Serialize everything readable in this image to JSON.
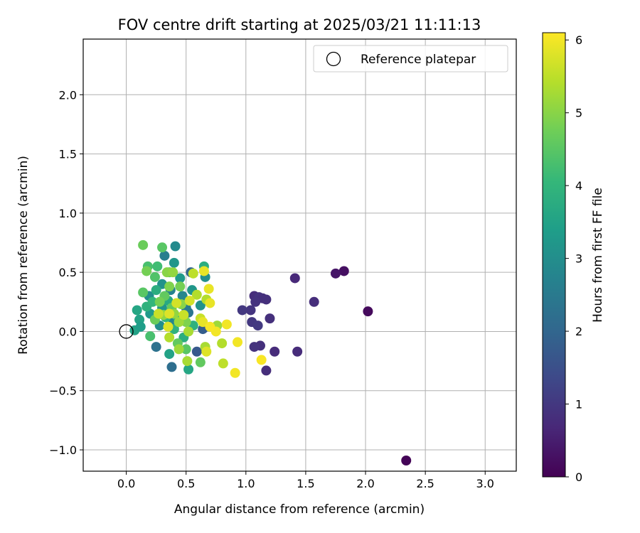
{
  "chart_data": {
    "type": "scatter",
    "title": "FOV centre drift starting at 2025/03/21 11:11:13",
    "xlabel": "Angular distance from reference (arcmin)",
    "ylabel": "Rotation from reference (arcmin)",
    "xlim": [
      -0.36,
      3.26
    ],
    "ylim": [
      -1.18,
      2.47
    ],
    "xticks": [
      "0.0",
      "0.5",
      "1.0",
      "1.5",
      "2.0",
      "2.5",
      "3.0"
    ],
    "yticks": [
      "−1.0",
      "−0.5",
      "0.0",
      "0.5",
      "1.0",
      "1.5",
      "2.0"
    ],
    "grid": true,
    "legend": {
      "position": "top-right",
      "entry": "Reference platepar"
    },
    "reference_point": {
      "x": 0.0,
      "y": 0.0
    },
    "colorbar": {
      "label": "Hours from first FF file",
      "colormap": "viridis",
      "range": [
        0,
        6.1
      ],
      "ticks": [
        "0",
        "1",
        "2",
        "3",
        "4",
        "5",
        "6"
      ]
    },
    "colormap_stops": [
      "#440154",
      "#482878",
      "#3e4989",
      "#31688e",
      "#26828e",
      "#1f9e89",
      "#35b779",
      "#6ece58",
      "#b5de2b",
      "#fde725"
    ],
    "points": [
      {
        "x": 2.34,
        "y": -1.09,
        "h": 0.05
      },
      {
        "x": 2.02,
        "y": 0.17,
        "h": 0.15
      },
      {
        "x": 1.82,
        "y": 0.51,
        "h": 0.25
      },
      {
        "x": 1.75,
        "y": 0.49,
        "h": 0.35
      },
      {
        "x": 1.41,
        "y": 0.45,
        "h": 0.7
      },
      {
        "x": 1.57,
        "y": 0.25,
        "h": 0.8
      },
      {
        "x": 1.43,
        "y": -0.17,
        "h": 0.75
      },
      {
        "x": 1.24,
        "y": -0.17,
        "h": 0.75
      },
      {
        "x": 1.17,
        "y": -0.33,
        "h": 0.8
      },
      {
        "x": 1.2,
        "y": 0.11,
        "h": 0.85
      },
      {
        "x": 1.12,
        "y": -0.12,
        "h": 0.85
      },
      {
        "x": 1.07,
        "y": -0.13,
        "h": 0.9
      },
      {
        "x": 1.07,
        "y": 0.3,
        "h": 0.8
      },
      {
        "x": 1.11,
        "y": 0.29,
        "h": 0.9
      },
      {
        "x": 1.14,
        "y": 0.28,
        "h": 0.85
      },
      {
        "x": 1.17,
        "y": 0.27,
        "h": 0.85
      },
      {
        "x": 1.08,
        "y": 0.25,
        "h": 0.9
      },
      {
        "x": 1.04,
        "y": 0.18,
        "h": 0.95
      },
      {
        "x": 0.97,
        "y": 0.18,
        "h": 1.0
      },
      {
        "x": 1.05,
        "y": 0.08,
        "h": 1.0
      },
      {
        "x": 1.1,
        "y": 0.05,
        "h": 1.05
      },
      {
        "x": 0.59,
        "y": -0.17,
        "h": 1.7
      },
      {
        "x": 0.64,
        "y": 0.02,
        "h": 1.8
      },
      {
        "x": 0.54,
        "y": 0.5,
        "h": 2.0
      },
      {
        "x": 0.38,
        "y": -0.3,
        "h": 2.2
      },
      {
        "x": 0.25,
        "y": -0.13,
        "h": 2.3
      },
      {
        "x": 0.52,
        "y": 0.16,
        "h": 2.4
      },
      {
        "x": 0.32,
        "y": 0.64,
        "h": 2.6
      },
      {
        "x": 0.41,
        "y": 0.72,
        "h": 2.9
      },
      {
        "x": 0.66,
        "y": 0.46,
        "h": 3.0
      },
      {
        "x": 0.47,
        "y": 0.3,
        "h": 2.8
      },
      {
        "x": 0.37,
        "y": 0.35,
        "h": 2.7
      },
      {
        "x": 0.5,
        "y": 0.2,
        "h": 2.5
      },
      {
        "x": 0.39,
        "y": 0.1,
        "h": 2.8
      },
      {
        "x": 0.28,
        "y": 0.05,
        "h": 3.0
      },
      {
        "x": 0.19,
        "y": 0.3,
        "h": 3.0
      },
      {
        "x": 0.3,
        "y": 0.4,
        "h": 3.1
      },
      {
        "x": 0.4,
        "y": 0.58,
        "h": 3.2
      },
      {
        "x": 0.45,
        "y": 0.45,
        "h": 3.3
      },
      {
        "x": 0.55,
        "y": 0.35,
        "h": 3.2
      },
      {
        "x": 0.62,
        "y": 0.22,
        "h": 3.1
      },
      {
        "x": 0.3,
        "y": 0.2,
        "h": 3.2
      },
      {
        "x": 0.2,
        "y": 0.15,
        "h": 3.3
      },
      {
        "x": 0.11,
        "y": 0.1,
        "h": 3.5
      },
      {
        "x": 0.07,
        "y": 0.01,
        "h": 3.5
      },
      {
        "x": 0.12,
        "y": 0.04,
        "h": 3.4
      },
      {
        "x": 0.09,
        "y": 0.18,
        "h": 3.6
      },
      {
        "x": 0.36,
        "y": -0.19,
        "h": 3.5
      },
      {
        "x": 0.52,
        "y": -0.32,
        "h": 3.6
      },
      {
        "x": 0.43,
        "y": 0.12,
        "h": 3.6
      },
      {
        "x": 0.35,
        "y": 0.26,
        "h": 3.7
      },
      {
        "x": 0.25,
        "y": 0.35,
        "h": 3.8
      },
      {
        "x": 0.65,
        "y": 0.55,
        "h": 3.8
      },
      {
        "x": 0.17,
        "y": 0.21,
        "h": 3.9
      },
      {
        "x": 0.56,
        "y": 0.05,
        "h": 3.9
      },
      {
        "x": 0.48,
        "y": -0.05,
        "h": 3.8
      },
      {
        "x": 0.4,
        "y": 0.02,
        "h": 3.9
      },
      {
        "x": 0.33,
        "y": 0.12,
        "h": 4.0
      },
      {
        "x": 0.22,
        "y": 0.25,
        "h": 4.0
      },
      {
        "x": 0.26,
        "y": 0.55,
        "h": 4.2
      },
      {
        "x": 0.18,
        "y": 0.55,
        "h": 4.3
      },
      {
        "x": 0.3,
        "y": 0.71,
        "h": 4.5
      },
      {
        "x": 0.36,
        "y": 0.5,
        "h": 4.4
      },
      {
        "x": 0.14,
        "y": 0.33,
        "h": 4.5
      },
      {
        "x": 0.24,
        "y": 0.46,
        "h": 4.4
      },
      {
        "x": 0.2,
        "y": -0.04,
        "h": 4.3
      },
      {
        "x": 0.62,
        "y": -0.26,
        "h": 4.6
      },
      {
        "x": 0.5,
        "y": -0.15,
        "h": 4.5
      },
      {
        "x": 0.43,
        "y": -0.1,
        "h": 4.6
      },
      {
        "x": 0.38,
        "y": 0.2,
        "h": 4.6
      },
      {
        "x": 0.32,
        "y": 0.3,
        "h": 4.6
      },
      {
        "x": 0.14,
        "y": 0.73,
        "h": 4.7
      },
      {
        "x": 0.17,
        "y": 0.51,
        "h": 4.8
      },
      {
        "x": 0.24,
        "y": 0.1,
        "h": 4.7
      },
      {
        "x": 0.28,
        "y": 0.25,
        "h": 4.8
      },
      {
        "x": 0.45,
        "y": 0.38,
        "h": 4.8
      },
      {
        "x": 0.5,
        "y": 0.08,
        "h": 4.9
      },
      {
        "x": 0.36,
        "y": 0.38,
        "h": 4.9
      },
      {
        "x": 0.34,
        "y": 0.5,
        "h": 5.0
      },
      {
        "x": 0.39,
        "y": 0.5,
        "h": 5.1
      },
      {
        "x": 0.46,
        "y": 0.23,
        "h": 5.0
      },
      {
        "x": 0.4,
        "y": 0.15,
        "h": 5.1
      },
      {
        "x": 0.31,
        "y": 0.14,
        "h": 5.1
      },
      {
        "x": 0.44,
        "y": 0.08,
        "h": 5.2
      },
      {
        "x": 0.52,
        "y": 0.0,
        "h": 5.3
      },
      {
        "x": 0.44,
        "y": -0.15,
        "h": 5.2
      },
      {
        "x": 0.51,
        "y": -0.25,
        "h": 5.3
      },
      {
        "x": 0.36,
        "y": -0.05,
        "h": 5.4
      },
      {
        "x": 0.66,
        "y": -0.13,
        "h": 5.3
      },
      {
        "x": 0.59,
        "y": 0.31,
        "h": 5.4
      },
      {
        "x": 0.76,
        "y": 0.05,
        "h": 5.2
      },
      {
        "x": 0.8,
        "y": -0.1,
        "h": 5.4
      },
      {
        "x": 0.81,
        "y": -0.27,
        "h": 5.5
      },
      {
        "x": 0.67,
        "y": 0.27,
        "h": 5.4
      },
      {
        "x": 0.56,
        "y": 0.49,
        "h": 5.5
      },
      {
        "x": 0.27,
        "y": 0.15,
        "h": 5.6
      },
      {
        "x": 0.62,
        "y": 0.11,
        "h": 5.6
      },
      {
        "x": 0.48,
        "y": 0.14,
        "h": 5.6
      },
      {
        "x": 0.42,
        "y": 0.24,
        "h": 5.7
      },
      {
        "x": 0.53,
        "y": 0.26,
        "h": 5.7
      },
      {
        "x": 0.35,
        "y": 0.04,
        "h": 5.8
      },
      {
        "x": 0.36,
        "y": 0.15,
        "h": 5.8
      },
      {
        "x": 0.67,
        "y": -0.17,
        "h": 5.8
      },
      {
        "x": 0.65,
        "y": 0.51,
        "h": 5.9
      },
      {
        "x": 0.69,
        "y": 0.36,
        "h": 5.9
      },
      {
        "x": 0.7,
        "y": 0.24,
        "h": 5.9
      },
      {
        "x": 0.64,
        "y": 0.08,
        "h": 5.9
      },
      {
        "x": 0.75,
        "y": 0.0,
        "h": 6.0
      },
      {
        "x": 0.84,
        "y": 0.06,
        "h": 6.0
      },
      {
        "x": 0.93,
        "y": -0.09,
        "h": 6.0
      },
      {
        "x": 0.91,
        "y": -0.35,
        "h": 6.0
      },
      {
        "x": 1.13,
        "y": -0.24,
        "h": 6.05
      },
      {
        "x": 0.7,
        "y": 0.04,
        "h": 6.05
      }
    ]
  }
}
